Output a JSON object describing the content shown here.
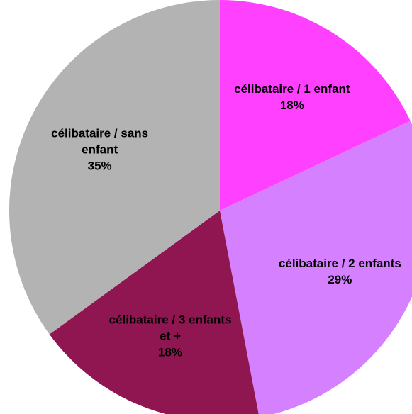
{
  "chart_data": {
    "type": "pie",
    "categories": [
      "célibataire / 1 enfant",
      "célibataire / 2 enfants",
      "célibataire / 3 enfants et +",
      "célibataire / sans enfant"
    ],
    "values": [
      18,
      29,
      18,
      35
    ],
    "value_labels": [
      "18%",
      "29%",
      "18%",
      "35%"
    ],
    "colors": [
      "#ff40ff",
      "#d580ff",
      "#8f1650",
      "#b3b3b3"
    ]
  }
}
